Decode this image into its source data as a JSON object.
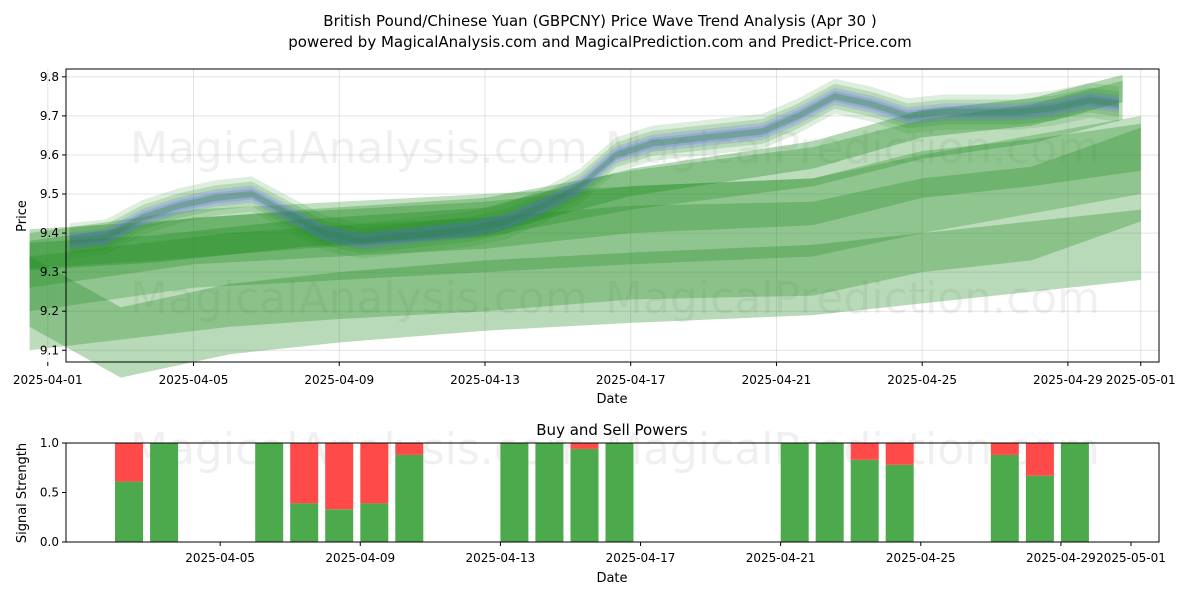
{
  "chart_data": [
    {
      "type": "area",
      "title_line1": "British Pound/Chinese Yuan (GBPCNY) Price Wave Trend Analysis (Apr 30 )",
      "title_line2": "powered by MagicalAnalysis.com and MagicalPrediction.com and Predict-Price.com",
      "xlabel": "Date",
      "ylabel": "Price",
      "xlim_day": [
        0.5,
        30.5
      ],
      "ylim": [
        9.07,
        9.82
      ],
      "yticks": [
        "9.1",
        "9.2",
        "9.3",
        "9.4",
        "9.5",
        "9.6",
        "9.7",
        "9.8"
      ],
      "xticks": [
        {
          "day": 0,
          "label": "2025-04-01"
        },
        {
          "day": 4,
          "label": "2025-04-05"
        },
        {
          "day": 8,
          "label": "2025-04-09"
        },
        {
          "day": 12,
          "label": "2025-04-13"
        },
        {
          "day": 16,
          "label": "2025-04-17"
        },
        {
          "day": 20,
          "label": "2025-04-21"
        },
        {
          "day": 24,
          "label": "2025-04-25"
        },
        {
          "day": 28,
          "label": "2025-04-29"
        },
        {
          "day": 30,
          "label": "2025-05-01"
        }
      ],
      "watermarks": [
        "MagicalAnalysis.com",
        "MagicalPrediction.com"
      ],
      "colors": {
        "green": "#228B22",
        "blue": "#5a5aff"
      },
      "price_days": [
        0.6,
        1.6,
        2.6,
        3.6,
        4.6,
        5.6,
        6.6,
        7.6,
        8.6,
        9.6,
        10.6,
        11.6,
        12.6,
        13.6,
        14.6,
        15.6,
        16.6,
        17.6,
        18.6,
        19.6,
        20.6,
        21.6,
        22.6,
        23.6,
        24.6,
        25.6,
        26.6,
        27.6,
        28.6,
        29.4
      ],
      "price_values": [
        9.38,
        9.39,
        9.44,
        9.47,
        9.49,
        9.5,
        9.45,
        9.4,
        9.38,
        9.39,
        9.4,
        9.41,
        9.43,
        9.47,
        9.52,
        9.6,
        9.63,
        9.64,
        9.65,
        9.66,
        9.7,
        9.75,
        9.73,
        9.7,
        9.71,
        9.71,
        9.71,
        9.72,
        9.74,
        9.73
      ],
      "trend_bands": [
        {
          "name": "band-1",
          "x": [
            -0.5,
            3,
            7,
            12,
            16,
            21,
            24,
            27,
            29.5
          ],
          "center": [
            9.34,
            9.36,
            9.4,
            9.43,
            9.53,
            9.6,
            9.68,
            9.71,
            9.77
          ],
          "width": 0.035,
          "opacity": 0.35
        },
        {
          "name": "band-2",
          "x": [
            -0.5,
            3,
            7,
            12,
            16,
            21,
            24,
            27,
            29.5
          ],
          "center": [
            9.36,
            9.38,
            9.41,
            9.44,
            9.51,
            9.57,
            9.64,
            9.68,
            9.74
          ],
          "width": 0.05,
          "opacity": 0.3
        },
        {
          "name": "band-3",
          "x": [
            -0.5,
            4,
            8,
            12,
            16,
            21,
            24,
            27,
            30.0
          ],
          "center": [
            9.32,
            9.38,
            9.4,
            9.42,
            9.46,
            9.48,
            9.55,
            9.58,
            9.62
          ],
          "width": 0.06,
          "opacity": 0.3
        },
        {
          "name": "band-4",
          "x": [
            -0.5,
            4,
            8,
            12,
            16,
            21,
            24,
            27,
            30.0
          ],
          "center": [
            9.3,
            9.36,
            9.38,
            9.4,
            9.42,
            9.44,
            9.5,
            9.55,
            9.6
          ],
          "width": 0.1,
          "opacity": 0.28
        },
        {
          "name": "band-5",
          "x": [
            -0.5,
            5,
            8,
            12,
            16,
            21,
            24,
            27,
            30.0
          ],
          "center": [
            9.22,
            9.28,
            9.3,
            9.32,
            9.35,
            9.36,
            9.42,
            9.45,
            9.55
          ],
          "width": 0.12,
          "opacity": 0.3
        },
        {
          "name": "band-6",
          "x": [
            -0.5,
            2,
            5,
            8,
            12,
            16,
            21,
            24,
            27,
            30.0
          ],
          "center": [
            9.25,
            9.12,
            9.18,
            9.21,
            9.24,
            9.26,
            9.28,
            9.31,
            9.34,
            9.37
          ],
          "width": 0.09,
          "opacity": 0.32
        }
      ]
    },
    {
      "type": "bar",
      "title": "Buy and Sell Powers",
      "xlabel": "Date",
      "ylabel": "Signal Strength",
      "ylim": [
        0,
        1
      ],
      "yticks": [
        "0.0",
        "0.5",
        "1.0"
      ],
      "xlim_day": [
        -0.4,
        30.8
      ],
      "xticks": [
        {
          "day": 4,
          "label": "2025-04-05"
        },
        {
          "day": 8,
          "label": "2025-04-09"
        },
        {
          "day": 12,
          "label": "2025-04-13"
        },
        {
          "day": 16,
          "label": "2025-04-17"
        },
        {
          "day": 20,
          "label": "2025-04-21"
        },
        {
          "day": 24,
          "label": "2025-04-25"
        },
        {
          "day": 28,
          "label": "2025-04-29"
        },
        {
          "day": 30,
          "label": "2025-05-01"
        }
      ],
      "colors": {
        "buy": "#4caa4c",
        "sell": "#ff4a4a"
      },
      "bars": [
        {
          "day": 1.4,
          "buy": 0.61
        },
        {
          "day": 2.4,
          "buy": 1.0
        },
        {
          "day": 5.4,
          "buy": 1.0
        },
        {
          "day": 6.4,
          "buy": 0.39
        },
        {
          "day": 7.4,
          "buy": 0.33
        },
        {
          "day": 8.4,
          "buy": 0.39
        },
        {
          "day": 9.4,
          "buy": 0.88
        },
        {
          "day": 12.4,
          "buy": 1.0
        },
        {
          "day": 13.4,
          "buy": 1.0
        },
        {
          "day": 14.4,
          "buy": 0.94
        },
        {
          "day": 15.4,
          "buy": 1.0
        },
        {
          "day": 20.4,
          "buy": 1.0
        },
        {
          "day": 21.4,
          "buy": 1.0
        },
        {
          "day": 22.4,
          "buy": 0.83
        },
        {
          "day": 23.4,
          "buy": 0.78
        },
        {
          "day": 26.4,
          "buy": 0.88
        },
        {
          "day": 27.4,
          "buy": 0.67
        },
        {
          "day": 28.4,
          "buy": 1.0
        }
      ]
    }
  ]
}
